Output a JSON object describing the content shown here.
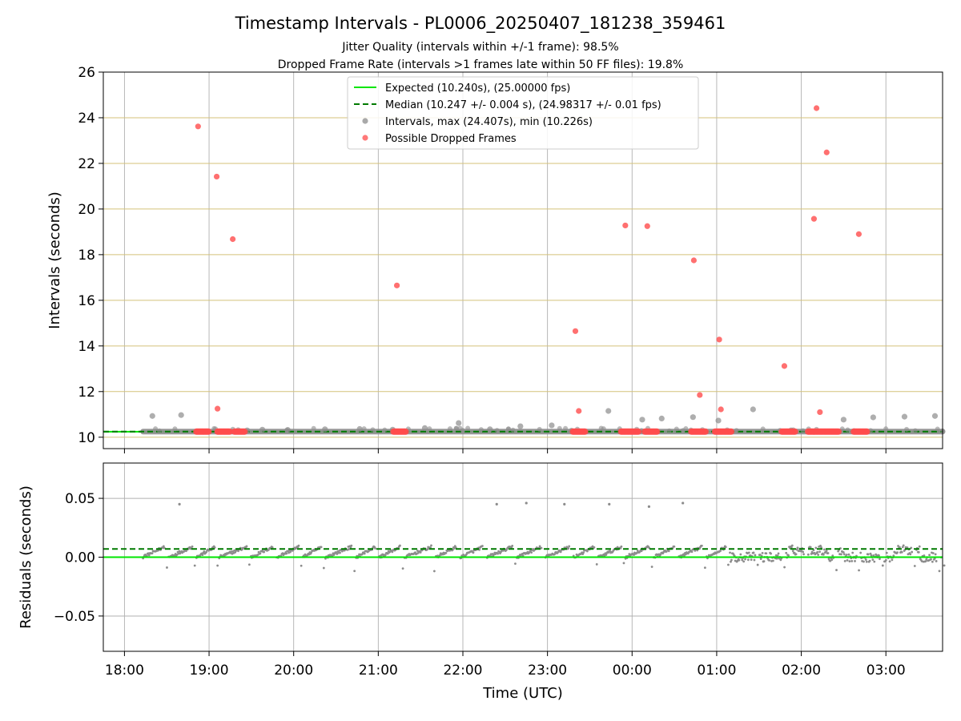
{
  "chart_data": {
    "type": "scatter",
    "title": "Timestamp Intervals - PL0006_20250407_181238_359461",
    "subtitles": [
      "Jitter Quality (intervals within +/-1 frame): 98.5%",
      "Dropped Frame Rate (intervals >1 frames late within 50 FF files): 19.8%"
    ],
    "xlabel": "Time (UTC)",
    "x_range_hours": [
      17.75,
      27.67
    ],
    "x_ticks": [
      {
        "h": 18,
        "label": "18:00"
      },
      {
        "h": 19,
        "label": "19:00"
      },
      {
        "h": 20,
        "label": "20:00"
      },
      {
        "h": 21,
        "label": "21:00"
      },
      {
        "h": 22,
        "label": "22:00"
      },
      {
        "h": 23,
        "label": "23:00"
      },
      {
        "h": 24,
        "label": "00:00"
      },
      {
        "h": 25,
        "label": "01:00"
      },
      {
        "h": 26,
        "label": "02:00"
      },
      {
        "h": 27,
        "label": "03:00"
      }
    ],
    "top_panel": {
      "ylabel": "Intervals (seconds)",
      "ylim": [
        9.5,
        26
      ],
      "y_ticks": [
        {
          "v": 10,
          "label": "10"
        },
        {
          "v": 12,
          "label": "12"
        },
        {
          "v": 14,
          "label": "14"
        },
        {
          "v": 16,
          "label": "16"
        },
        {
          "v": 18,
          "label": "18"
        },
        {
          "v": 20,
          "label": "20"
        },
        {
          "v": 22,
          "label": "22"
        },
        {
          "v": 24,
          "label": "24"
        },
        {
          "v": 26,
          "label": "26"
        }
      ],
      "expected": 10.24,
      "median": 10.247,
      "data_start_hour": 18.22,
      "legend": {
        "placement": "top-center",
        "entries": [
          {
            "label": "Expected (10.240s), (25.00000 fps)",
            "kind": "line-solid",
            "color": "#00e600"
          },
          {
            "label": "Median (10.247 +/- 0.004 s), (24.98317 +/- 0.01 fps)",
            "kind": "line-dashed",
            "color": "#007a00"
          },
          {
            "label": "Intervals, max (24.407s), min (10.226s)",
            "kind": "marker",
            "color": "#8c8c8c"
          },
          {
            "label": "Possible Dropped Frames",
            "kind": "marker",
            "color": "#ff4c4c"
          }
        ]
      },
      "intervals": [
        [
          18.33,
          10.93
        ],
        [
          18.67,
          10.97
        ],
        [
          19.45,
          10.3
        ],
        [
          19.63,
          10.33
        ],
        [
          19.93,
          10.32
        ],
        [
          20.37,
          10.35
        ],
        [
          20.78,
          10.36
        ],
        [
          21.17,
          10.33
        ],
        [
          21.55,
          10.4
        ],
        [
          21.95,
          10.62
        ],
        [
          22.32,
          10.35
        ],
        [
          22.68,
          10.48
        ],
        [
          23.05,
          10.52
        ],
        [
          23.72,
          11.15
        ],
        [
          24.12,
          10.77
        ],
        [
          24.35,
          10.82
        ],
        [
          24.72,
          10.88
        ],
        [
          25.02,
          10.73
        ],
        [
          25.43,
          11.22
        ],
        [
          25.88,
          10.3
        ],
        [
          26.5,
          10.77
        ],
        [
          26.85,
          10.87
        ],
        [
          27.22,
          10.9
        ],
        [
          27.58,
          10.93
        ]
      ],
      "dropped_frames": [
        [
          18.87,
          23.62
        ],
        [
          19.09,
          21.42
        ],
        [
          19.28,
          18.68
        ],
        [
          19.1,
          11.25
        ],
        [
          21.22,
          16.65
        ],
        [
          23.33,
          14.65
        ],
        [
          23.37,
          11.15
        ],
        [
          23.92,
          19.28
        ],
        [
          24.18,
          19.25
        ],
        [
          24.73,
          17.75
        ],
        [
          24.8,
          11.85
        ],
        [
          25.03,
          14.28
        ],
        [
          25.05,
          11.22
        ],
        [
          25.8,
          13.12
        ],
        [
          26.15,
          19.57
        ],
        [
          26.18,
          24.42
        ],
        [
          26.22,
          11.1
        ],
        [
          26.3,
          22.48
        ],
        [
          26.68,
          18.9
        ]
      ],
      "dropped_clusters": [
        [
          18.85,
          19.0
        ],
        [
          19.1,
          19.25
        ],
        [
          19.3,
          19.43
        ],
        [
          21.18,
          21.33
        ],
        [
          23.3,
          23.45
        ],
        [
          23.87,
          24.08
        ],
        [
          24.15,
          24.3
        ],
        [
          24.7,
          24.88
        ],
        [
          24.98,
          25.18
        ],
        [
          25.77,
          25.93
        ],
        [
          26.08,
          26.45
        ],
        [
          26.62,
          26.78
        ]
      ]
    },
    "bottom_panel": {
      "ylabel": "Residuals (seconds)",
      "ylim": [
        -0.08,
        0.08
      ],
      "y_ticks": [
        {
          "v": 0.05,
          "label": "0.05"
        },
        {
          "v": 0.0,
          "label": "0.00"
        },
        {
          "v": -0.05,
          "label": "−0.05"
        }
      ],
      "expected": 0.0,
      "median": 0.007,
      "outliers": [
        [
          18.65,
          0.045
        ],
        [
          22.4,
          0.045
        ],
        [
          22.75,
          0.046
        ],
        [
          23.2,
          0.045
        ],
        [
          23.73,
          0.045
        ],
        [
          24.2,
          0.043
        ],
        [
          24.6,
          0.046
        ]
      ]
    }
  },
  "colors": {
    "expected": "#00e600",
    "median": "#007a00",
    "interval_marker": "#8c8c8c",
    "dropped_marker": "#ff4c4c",
    "top_grid": "#d4c27a",
    "x_grid": "#b0b0b0",
    "bottom_grid": "#b0b0b0"
  }
}
